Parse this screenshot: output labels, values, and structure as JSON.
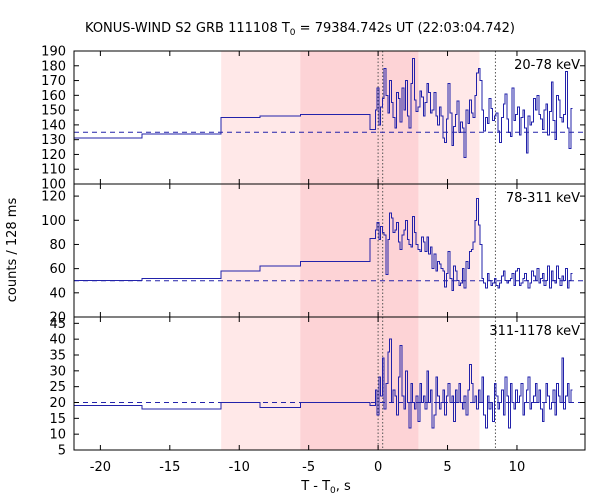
{
  "chart_data": {
    "type": "line",
    "title": {
      "prefix": "KONUS-WIND S2 GRB 111108 T",
      "sub": "0",
      "suffix": " = 79384.742s UT (22:03:04.742)"
    },
    "xlabel": {
      "prefix": "T - T",
      "sub": "0",
      "suffix": ", s"
    },
    "ylabel": "counts / 128 ms",
    "xlim": [
      -21.9,
      14.9
    ],
    "x_ticks": [
      -20,
      -15,
      -10,
      -5,
      0,
      5,
      10
    ],
    "shaded_intervals": [
      {
        "range": [
          -11.3,
          7.3
        ],
        "color": "#ffe8e8"
      },
      {
        "range": [
          -5.6,
          2.9
        ],
        "color": "#fdd3d6"
      }
    ],
    "vertical_markers": [
      0.0,
      0.33,
      8.45
    ],
    "series_color": "#2222aa",
    "background_color": "#2222aa",
    "panels": [
      {
        "label": "20-78 keV",
        "ylim": [
          100,
          190
        ],
        "y_ticks": [
          100,
          110,
          120,
          130,
          140,
          150,
          160,
          170,
          180,
          190
        ],
        "background": 135,
        "steps": [
          {
            "x": [
              -21.9,
              -17.0
            ],
            "y": 131
          },
          {
            "x": [
              -17.0,
              -11.3
            ],
            "y": 134
          },
          {
            "x": [
              -11.3,
              -8.5
            ],
            "y": 145
          },
          {
            "x": [
              -8.5,
              -5.6
            ],
            "y": 146
          },
          {
            "x": [
              -5.6,
              -0.6
            ],
            "y": 147
          },
          {
            "x": [
              -0.6,
              -0.2
            ],
            "y": 137
          }
        ],
        "fine": {
          "x0": -0.2,
          "dt": 0.128,
          "values": [
            150,
            165,
            140,
            152,
            158,
            178,
            160,
            148,
            170,
            155,
            145,
            138,
            162,
            158,
            142,
            165,
            150,
            170,
            146,
            138,
            168,
            185,
            157,
            149,
            152,
            163,
            159,
            146,
            155,
            168,
            162,
            148,
            150,
            162,
            146,
            140,
            152,
            146,
            131,
            128,
            144,
            168,
            148,
            126,
            139,
            147,
            156,
            135,
            142,
            138,
            118,
            150,
            141,
            157,
            148,
            145,
            160,
            175,
            178,
            170,
            150,
            136,
            145,
            141,
            158,
            151,
            143,
            146,
            148,
            136,
            128,
            145,
            154,
            161,
            144,
            135,
            132,
            165,
            143,
            147,
            152,
            133,
            145,
            150,
            138,
            121,
            146,
            140,
            142,
            158,
            150,
            160,
            147,
            144,
            137,
            150,
            154,
            133,
            149,
            169,
            143,
            130,
            160,
            157,
            145,
            142,
            147,
            176,
            138,
            124,
            151
          ]
        }
      },
      {
        "label": "78-311 keV",
        "ylim": [
          20,
          130
        ],
        "y_ticks": [
          20,
          40,
          60,
          80,
          100,
          120
        ],
        "background": 50,
        "steps": [
          {
            "x": [
              -21.9,
              -17.0
            ],
            "y": 50
          },
          {
            "x": [
              -17.0,
              -11.3
            ],
            "y": 52
          },
          {
            "x": [
              -11.3,
              -8.5
            ],
            "y": 58
          },
          {
            "x": [
              -8.5,
              -5.6
            ],
            "y": 62
          },
          {
            "x": [
              -5.6,
              -0.6
            ],
            "y": 66
          },
          {
            "x": [
              -0.6,
              -0.2
            ],
            "y": 85
          }
        ],
        "fine": {
          "x0": -0.2,
          "dt": 0.128,
          "values": [
            92,
            98,
            84,
            95,
            90,
            88,
            55,
            84,
            106,
            102,
            90,
            92,
            98,
            82,
            76,
            88,
            92,
            100,
            84,
            80,
            78,
            103,
            90,
            80,
            76,
            74,
            86,
            82,
            74,
            86,
            72,
            78,
            60,
            72,
            58,
            66,
            64,
            60,
            58,
            45,
            56,
            74,
            52,
            42,
            62,
            58,
            50,
            46,
            48,
            60,
            44,
            66,
            60,
            74,
            76,
            82,
            100,
            118,
            96,
            80,
            52,
            48,
            44,
            56,
            50,
            46,
            48,
            52,
            46,
            44,
            48,
            54,
            58,
            50,
            48,
            50,
            52,
            56,
            46,
            58,
            60,
            46,
            48,
            52,
            56,
            50,
            44,
            48,
            58,
            54,
            50,
            60,
            48,
            52,
            56,
            46,
            50,
            62,
            44,
            58,
            50,
            48,
            62,
            52,
            46,
            54,
            50,
            60,
            44,
            50,
            56
          ]
        }
      },
      {
        "label": "311-1178 keV",
        "ylim": [
          5,
          47
        ],
        "y_ticks": [
          5,
          10,
          15,
          20,
          25,
          30,
          35,
          40,
          45
        ],
        "background": 20,
        "steps": [
          {
            "x": [
              -21.9,
              -17.0
            ],
            "y": 19
          },
          {
            "x": [
              -17.0,
              -11.3
            ],
            "y": 18
          },
          {
            "x": [
              -11.3,
              -8.5
            ],
            "y": 20
          },
          {
            "x": [
              -8.5,
              -5.6
            ],
            "y": 18.5
          },
          {
            "x": [
              -5.6,
              -0.6
            ],
            "y": 20
          },
          {
            "x": [
              -0.6,
              -0.2
            ],
            "y": 19
          }
        ],
        "fine": {
          "x0": -0.2,
          "dt": 0.128,
          "values": [
            24,
            16,
            28,
            22,
            34,
            18,
            26,
            36,
            40,
            20,
            24,
            22,
            16,
            28,
            38,
            22,
            18,
            30,
            20,
            12,
            26,
            20,
            18,
            22,
            14,
            26,
            20,
            22,
            18,
            30,
            20,
            24,
            12,
            16,
            28,
            22,
            18,
            20,
            24,
            16,
            22,
            26,
            20,
            22,
            14,
            24,
            20,
            26,
            20,
            18,
            22,
            16,
            24,
            32,
            26,
            20,
            22,
            18,
            24,
            20,
            28,
            16,
            12,
            22,
            18,
            20,
            14,
            26,
            22,
            18,
            20,
            24,
            16,
            28,
            22,
            12,
            26,
            20,
            18,
            24,
            20,
            22,
            26,
            16,
            20,
            24,
            28,
            18,
            20,
            22,
            26,
            20,
            24,
            18,
            14,
            20,
            26,
            22,
            18,
            20,
            24,
            16,
            26,
            22,
            20,
            34,
            18,
            22,
            26,
            20,
            24
          ]
        }
      }
    ]
  }
}
